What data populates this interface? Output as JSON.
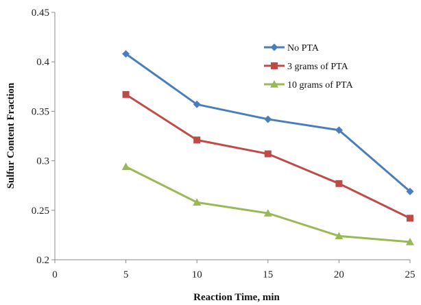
{
  "chart_data": {
    "type": "line",
    "title": "",
    "xlabel": "Reaction Time, min",
    "ylabel": "Sulfur Content Fraction",
    "xlim": [
      0,
      25
    ],
    "ylim": [
      0.2,
      0.45
    ],
    "x_ticks": [
      "0",
      "5",
      "10",
      "15",
      "20",
      "25"
    ],
    "y_ticks": [
      "0.2",
      "0.25",
      "0.3",
      "0.35",
      "0.4",
      "0.45"
    ],
    "x": [
      5,
      10,
      15,
      20,
      25
    ],
    "grid": false,
    "legend_position": "top-right",
    "series": [
      {
        "name": "No PTA",
        "color": "#4A7EBB",
        "marker": "diamond",
        "values": [
          0.408,
          0.357,
          0.342,
          0.331,
          0.269
        ]
      },
      {
        "name": "3 grams of PTA",
        "color": "#BE4B48",
        "marker": "square",
        "values": [
          0.367,
          0.321,
          0.307,
          0.277,
          0.242
        ]
      },
      {
        "name": "10 grams of PTA",
        "color": "#98B954",
        "marker": "triangle",
        "values": [
          0.294,
          0.258,
          0.247,
          0.224,
          0.218
        ]
      }
    ]
  }
}
